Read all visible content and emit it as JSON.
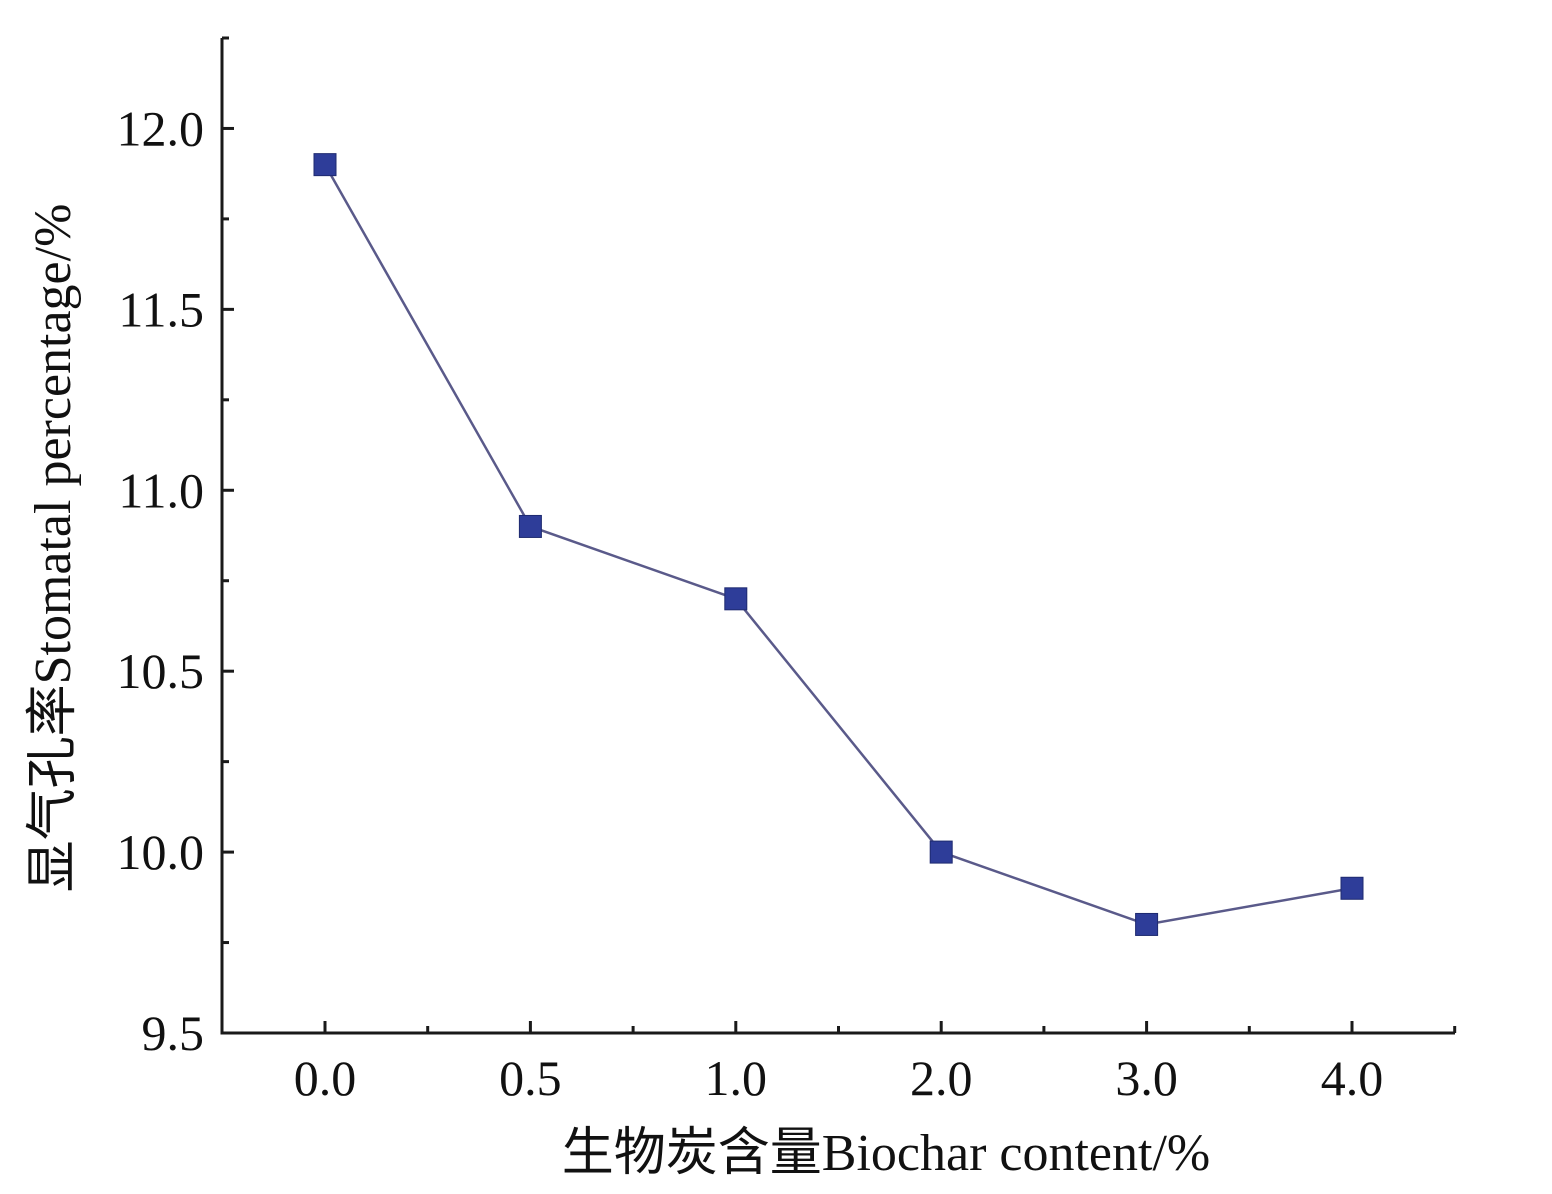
{
  "chart_data": {
    "type": "line",
    "categories": [
      "0.0",
      "0.5",
      "1.0",
      "2.0",
      "3.0",
      "4.0"
    ],
    "series": [
      {
        "values": [
          11.9,
          10.9,
          10.7,
          10.0,
          9.8,
          9.9
        ]
      }
    ],
    "xlabel": "生物炭含量Biochar content/%",
    "ylabel": "显气孔率Stomatal percentage/%",
    "ylim": [
      9.5,
      12.25
    ],
    "yticks": [
      9.5,
      10.0,
      10.5,
      11.0,
      11.5,
      12.0
    ],
    "ytick_labels": [
      "9.5",
      "10.0",
      "10.5",
      "11.0",
      "11.5",
      "12.0"
    ],
    "grid": false,
    "line_color": "#5a5a8a",
    "marker_color": "#2e3d99",
    "marker": "square"
  }
}
